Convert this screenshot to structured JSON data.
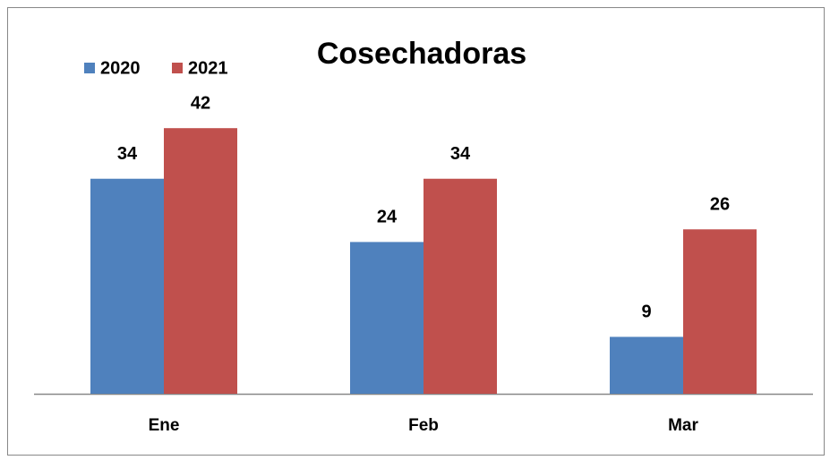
{
  "chart_data": {
    "type": "bar",
    "title": "Cosechadoras",
    "categories": [
      "Ene",
      "Feb",
      "Mar"
    ],
    "series": [
      {
        "name": "2020",
        "color": "#4f81bd",
        "values": [
          34,
          24,
          9
        ]
      },
      {
        "name": "2021",
        "color": "#c0504d",
        "values": [
          42,
          34,
          26
        ]
      }
    ],
    "ylim": [
      0,
      45
    ],
    "legend": "top-left"
  }
}
